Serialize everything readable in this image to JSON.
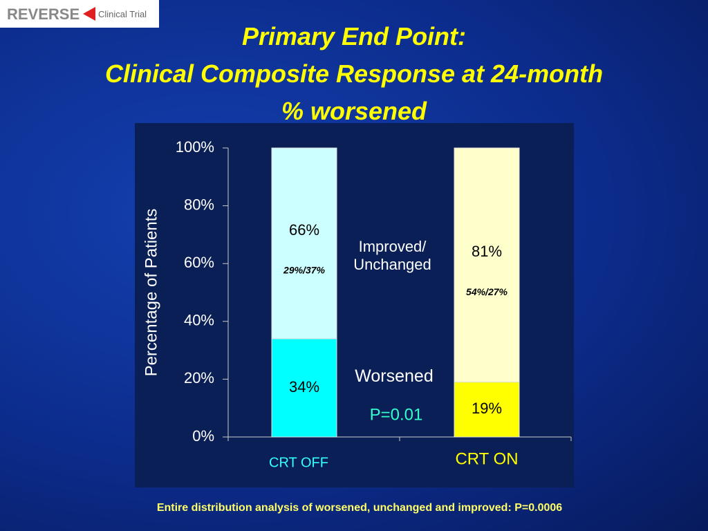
{
  "logo": {
    "brand": "REVERSE",
    "subtitle": "Clinical Trial"
  },
  "chart_data": {
    "type": "stacked_bar",
    "title": [
      "Primary End Point:",
      "Clinical Composite Response at 24-month",
      "% worsened"
    ],
    "ylabel": "Percentage of Patients",
    "categories": [
      "CRT OFF",
      "CRT ON"
    ],
    "category_colors": [
      "#33ffff",
      "#ffff00"
    ],
    "series": [
      {
        "name": "Worsened",
        "colors": [
          "#00ffff",
          "#ffff00"
        ],
        "values": [
          34,
          19
        ],
        "value_labels": [
          "34%",
          "19%"
        ]
      },
      {
        "name": "Improved/ Unchanged",
        "colors": [
          "#ccffff",
          "#ffffcc"
        ],
        "values": [
          66,
          81
        ],
        "value_labels": [
          "66%",
          "81%"
        ],
        "breakdown_labels": [
          "29%/37%",
          "54%/27%"
        ]
      }
    ],
    "annotation": "P=0.01",
    "ylim": [
      0,
      100
    ],
    "yticks": [
      {
        "value": 0,
        "label": "0%"
      },
      {
        "value": 20,
        "label": "20%"
      },
      {
        "value": 40,
        "label": "40%"
      },
      {
        "value": 60,
        "label": "60%"
      },
      {
        "value": 80,
        "label": "80%"
      },
      {
        "value": 100,
        "label": "100%"
      }
    ],
    "footnote": "Entire distribution analysis of worsened, unchanged and improved: P=0.0006"
  }
}
